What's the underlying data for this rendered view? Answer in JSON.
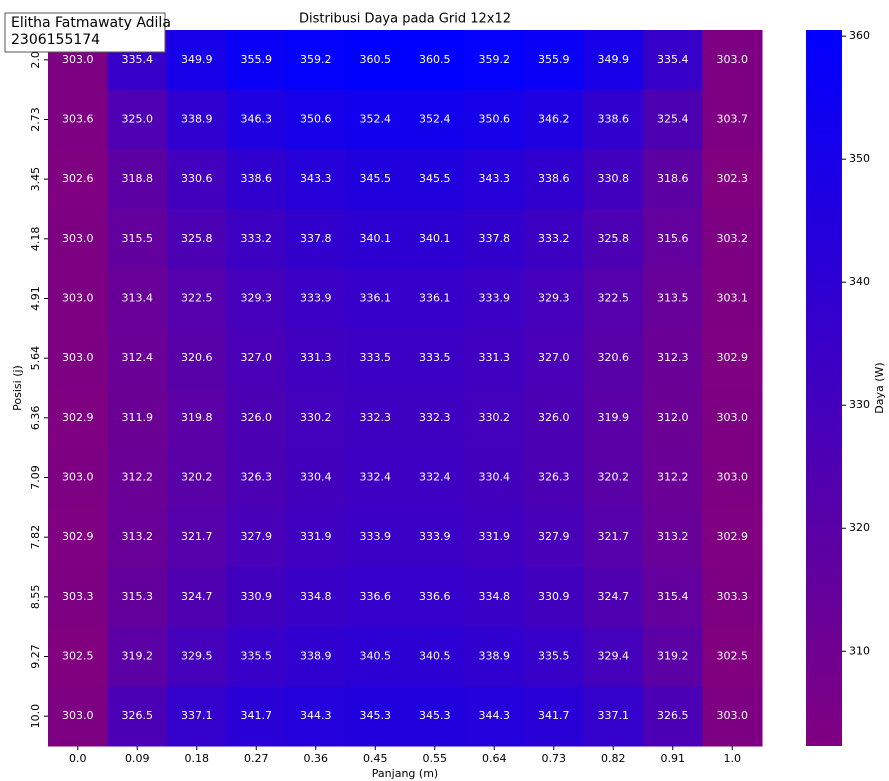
{
  "chart_data": {
    "type": "heatmap",
    "title": "Distribusi Daya pada Grid 12x12",
    "xlabel": "Panjang (m)",
    "ylabel": "Posisi (j)",
    "annotation": [
      "Elitha Fatmawaty Adila",
      "2306155174"
    ],
    "x_categories": [
      "0.0",
      "0.09",
      "0.18",
      "0.27",
      "0.36",
      "0.45",
      "0.55",
      "0.64",
      "0.73",
      "0.82",
      "0.91",
      "1.0"
    ],
    "y_categories": [
      "2.0",
      "2.73",
      "3.45",
      "4.18",
      "4.91",
      "5.64",
      "6.36",
      "7.09",
      "7.82",
      "8.55",
      "9.27",
      "10.0"
    ],
    "values": [
      [
        303.0,
        335.4,
        349.9,
        355.9,
        359.2,
        360.5,
        360.5,
        359.2,
        355.9,
        349.9,
        335.4,
        303.0
      ],
      [
        303.6,
        325.0,
        338.9,
        346.3,
        350.6,
        352.4,
        352.4,
        350.6,
        346.2,
        338.6,
        325.4,
        303.7
      ],
      [
        302.6,
        318.8,
        330.6,
        338.6,
        343.3,
        345.5,
        345.5,
        343.3,
        338.6,
        330.8,
        318.6,
        302.3
      ],
      [
        303.0,
        315.5,
        325.8,
        333.2,
        337.8,
        340.1,
        340.1,
        337.8,
        333.2,
        325.8,
        315.6,
        303.2
      ],
      [
        303.0,
        313.4,
        322.5,
        329.3,
        333.9,
        336.1,
        336.1,
        333.9,
        329.3,
        322.5,
        313.5,
        303.1
      ],
      [
        303.0,
        312.4,
        320.6,
        327.0,
        331.3,
        333.5,
        333.5,
        331.3,
        327.0,
        320.6,
        312.3,
        302.9
      ],
      [
        302.9,
        311.9,
        319.8,
        326.0,
        330.2,
        332.3,
        332.3,
        330.2,
        326.0,
        319.9,
        312.0,
        303.0
      ],
      [
        303.0,
        312.2,
        320.2,
        326.3,
        330.4,
        332.4,
        332.4,
        330.4,
        326.3,
        320.2,
        312.2,
        303.0
      ],
      [
        302.9,
        313.2,
        321.7,
        327.9,
        331.9,
        333.9,
        333.9,
        331.9,
        327.9,
        321.7,
        313.2,
        302.9
      ],
      [
        303.3,
        315.3,
        324.7,
        330.9,
        334.8,
        336.6,
        336.6,
        334.8,
        330.9,
        324.7,
        315.4,
        303.3
      ],
      [
        302.5,
        319.2,
        329.5,
        335.5,
        338.9,
        340.5,
        340.5,
        338.9,
        335.5,
        329.4,
        319.2,
        302.5
      ],
      [
        303.0,
        326.5,
        337.1,
        341.7,
        344.3,
        345.3,
        345.3,
        344.3,
        341.7,
        337.1,
        326.5,
        303.0
      ]
    ],
    "value_labels": [
      [
        "303.0",
        "335.4",
        "349.9",
        "355.9",
        "359.2",
        "360.5",
        "360.5",
        "359.2",
        "355.9",
        "349.9",
        "335.4",
        "303.0"
      ],
      [
        "303.6",
        "325.0",
        "338.9",
        "346.3",
        "350.6",
        "352.4",
        "352.4",
        "350.6",
        "346.2",
        "338.6",
        "325.4",
        "303.7"
      ],
      [
        "302.6",
        "318.8",
        "330.6",
        "338.6",
        "343.3",
        "345.5",
        "345.5",
        "343.3",
        "338.6",
        "330.8",
        "318.6",
        "302.3"
      ],
      [
        "303.0",
        "315.5",
        "325.8",
        "333.2",
        "337.8",
        "340.1",
        "340.1",
        "337.8",
        "333.2",
        "325.8",
        "315.6",
        "303.2"
      ],
      [
        "303.0",
        "313.4",
        "322.5",
        "329.3",
        "333.9",
        "336.1",
        "336.1",
        "333.9",
        "329.3",
        "322.5",
        "313.5",
        "303.1"
      ],
      [
        "303.0",
        "312.4",
        "320.6",
        "327.0",
        "331.3",
        "333.5",
        "333.5",
        "331.3",
        "327.0",
        "320.6",
        "312.3",
        "302.9"
      ],
      [
        "302.9",
        "311.9",
        "319.8",
        "326.0",
        "330.2",
        "332.3",
        "332.3",
        "330.2",
        "326.0",
        "319.9",
        "312.0",
        "303.0"
      ],
      [
        "303.0",
        "312.2",
        "320.2",
        "326.3",
        "330.4",
        "332.4",
        "332.4",
        "330.4",
        "326.3",
        "320.2",
        "312.2",
        "303.0"
      ],
      [
        "302.9",
        "313.2",
        "321.7",
        "327.9",
        "331.9",
        "333.9",
        "333.9",
        "331.9",
        "327.9",
        "321.7",
        "313.2",
        "302.9"
      ],
      [
        "303.3",
        "315.3",
        "324.7",
        "330.9",
        "334.8",
        "336.6",
        "336.6",
        "334.8",
        "330.9",
        "324.7",
        "315.4",
        "303.3"
      ],
      [
        "302.5",
        "319.2",
        "329.5",
        "335.5",
        "338.9",
        "340.5",
        "340.5",
        "338.9",
        "335.5",
        "329.4",
        "319.2",
        "302.5"
      ],
      [
        "303.0",
        "326.5",
        "337.1",
        "341.7",
        "344.3",
        "345.3",
        "345.3",
        "344.3",
        "341.7",
        "337.1",
        "326.5",
        "303.0"
      ]
    ],
    "colorbar": {
      "label": "Daya (W)",
      "lim": [
        302.3,
        360.5
      ],
      "ticks": [
        310,
        320,
        330,
        340,
        350,
        360
      ],
      "colors": [
        "#800080",
        "#0000ff"
      ]
    }
  }
}
